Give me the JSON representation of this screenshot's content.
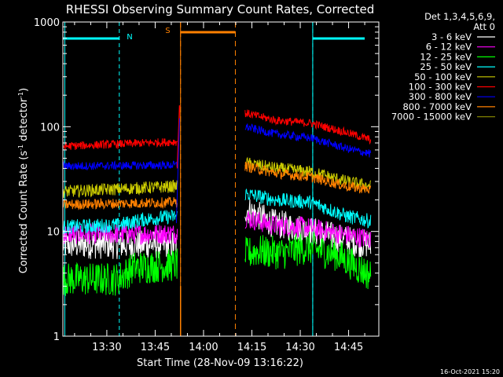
{
  "chart_data": {
    "type": "line",
    "title": "RHESSI Observing Summary Count Rates, Corrected",
    "xlabel": "Start Time (28-Nov-09 13:16:22)",
    "ylabel_main": "Corrected Count Rate (s",
    "ylabel_sup1": "-1",
    "ylabel_mid": " detector",
    "ylabel_sup2": "-1",
    "ylabel_end": ")",
    "y_scale": "log",
    "ylim": [
      1,
      1000
    ],
    "xlim_minutes": [
      0,
      98
    ],
    "x_ticks": [
      {
        "label": "13:30",
        "min": 13.63
      },
      {
        "label": "13:45",
        "min": 28.63
      },
      {
        "label": "14:00",
        "min": 43.63
      },
      {
        "label": "14:15",
        "min": 58.63
      },
      {
        "label": "14:30",
        "min": 73.63
      },
      {
        "label": "14:45",
        "min": 88.63
      }
    ],
    "y_ticks": [
      {
        "label": "1",
        "value": 1
      },
      {
        "label": "10",
        "value": 10
      },
      {
        "label": "100",
        "value": 100
      },
      {
        "label": "1000",
        "value": 1000
      }
    ],
    "legend_header": [
      "Det 1,3,4,5,6,9,",
      "Att 0"
    ],
    "series": [
      {
        "name": "3 - 6 keV",
        "color": "#ffffff",
        "segments": [
          [
            [
              0,
              7.5
            ],
            [
              35.5,
              7.5
            ]
          ],
          [
            [
              56.5,
              16.5
            ],
            [
              65,
              12
            ],
            [
              75,
              10.5
            ],
            [
              90,
              8
            ],
            [
              95.5,
              7.5
            ]
          ]
        ]
      },
      {
        "name": "6 - 12 keV",
        "color": "#ff00ff",
        "segments": [
          [
            [
              0,
              9.5
            ],
            [
              35.5,
              9.5
            ]
          ],
          [
            [
              56.5,
              13.5
            ],
            [
              65,
              11.5
            ],
            [
              75,
              11
            ],
            [
              90,
              9
            ],
            [
              95.5,
              8.5
            ]
          ]
        ]
      },
      {
        "name": "12 - 25 keV",
        "color": "#00ff00",
        "segments": [
          [
            [
              0,
              3.5
            ],
            [
              17,
              3.5
            ],
            [
              22,
              4.5
            ],
            [
              35.5,
              4.8
            ]
          ],
          [
            [
              56.5,
              6
            ],
            [
              60,
              6.5
            ],
            [
              68,
              6.2
            ],
            [
              76,
              7
            ],
            [
              85,
              6
            ],
            [
              95.5,
              3.8
            ]
          ]
        ]
      },
      {
        "name": "25 - 50 keV",
        "color": "#00ffff",
        "segments": [
          [
            [
              0,
              11
            ],
            [
              17,
              11.5
            ],
            [
              25,
              13
            ],
            [
              35.5,
              14
            ]
          ],
          [
            [
              56.5,
              23
            ],
            [
              66,
              20
            ],
            [
              77,
              19
            ],
            [
              88,
              14
            ],
            [
              95.5,
              12.5
            ]
          ]
        ]
      },
      {
        "name": "50 - 100 keV",
        "color": "#cccc00",
        "segments": [
          [
            [
              0,
              24
            ],
            [
              35.5,
              27
            ]
          ],
          [
            [
              56.5,
              45
            ],
            [
              66,
              40
            ],
            [
              77,
              37
            ],
            [
              88,
              30
            ],
            [
              95.5,
              27
            ]
          ]
        ]
      },
      {
        "name": "100 - 300 keV",
        "color": "#ff0000",
        "segments": [
          [
            [
              0,
              65
            ],
            [
              35.5,
              72
            ]
          ],
          [
            [
              56.5,
              135
            ],
            [
              66,
              115
            ],
            [
              77,
              108
            ],
            [
              88,
              88
            ],
            [
              95.5,
              75
            ]
          ]
        ]
      },
      {
        "name": "300 - 800 keV",
        "color": "#0000ff",
        "segments": [
          [
            [
              0,
              42
            ],
            [
              35.5,
              43
            ]
          ],
          [
            [
              56.5,
              100
            ],
            [
              66,
              85
            ],
            [
              77,
              78
            ],
            [
              88,
              62
            ],
            [
              95.5,
              55
            ]
          ]
        ]
      },
      {
        "name": "800 - 7000 keV",
        "color": "#ff8000",
        "segments": [
          [
            [
              0,
              18
            ],
            [
              35.5,
              19
            ]
          ],
          [
            [
              56.5,
              42
            ],
            [
              66,
              36
            ],
            [
              77,
              33
            ],
            [
              88,
              27
            ],
            [
              95.5,
              25
            ]
          ]
        ]
      },
      {
        "name": "7000 - 15000 keV",
        "color": "#808000",
        "segments": []
      }
    ],
    "annotations": [
      {
        "label": "N",
        "color": "#00ffff",
        "start_min": 17.5,
        "end_min": 77.5,
        "text_min": 19.5
      },
      {
        "label": "S",
        "color": "#ff8000",
        "start_min": 36.5,
        "end_min": 53.5,
        "text_min": 33.5
      }
    ],
    "timestamp": "16-Oct-2021 15:20"
  }
}
